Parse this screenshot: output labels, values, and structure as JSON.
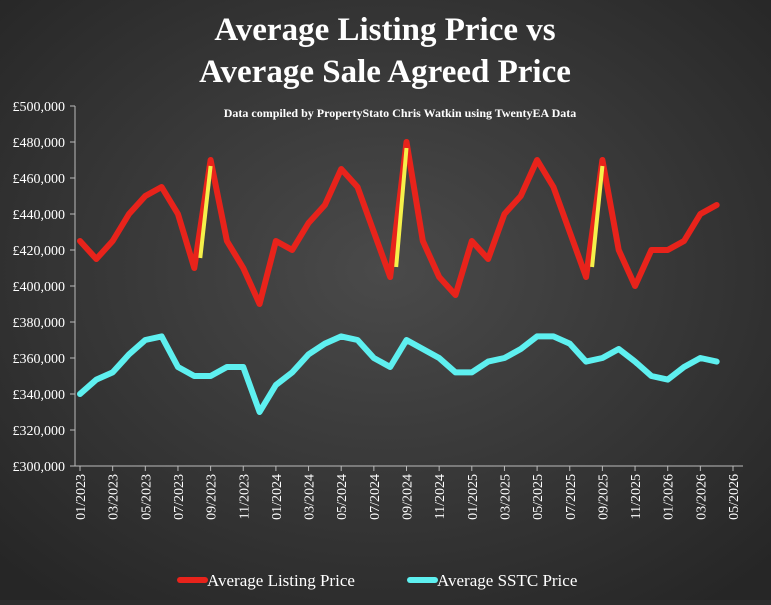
{
  "chart_data": {
    "type": "line",
    "title_lines": [
      "Average Listing Price vs",
      "Average Sale Agreed Price"
    ],
    "subtitle": "Data compiled by PropertyStato Chris Watkin using TwentyEA Data",
    "x": [
      "01/2023",
      "02/2023",
      "03/2023",
      "04/2023",
      "05/2023",
      "06/2023",
      "07/2023",
      "08/2023",
      "09/2023",
      "10/2023",
      "11/2023",
      "12/2023",
      "01/2024",
      "02/2024",
      "03/2024",
      "04/2024",
      "05/2024",
      "06/2024",
      "07/2024",
      "08/2024",
      "09/2024",
      "10/2024",
      "11/2024",
      "12/2024",
      "01/2025",
      "02/2025",
      "03/2025",
      "04/2025",
      "05/2025",
      "06/2025",
      "07/2025",
      "08/2025",
      "09/2025",
      "10/2025",
      "11/2025",
      "12/2025",
      "01/2026",
      "02/2026",
      "03/2026",
      "04/2026"
    ],
    "series": [
      {
        "name": "Average Listing Price",
        "color": "#e8231b",
        "values": [
          425000,
          415000,
          425000,
          440000,
          450000,
          455000,
          440000,
          410000,
          470000,
          425000,
          410000,
          390000,
          425000,
          420000,
          435000,
          445000,
          465000,
          455000,
          430000,
          405000,
          480000,
          425000,
          405000,
          395000,
          425000,
          415000,
          440000,
          450000,
          470000,
          455000,
          430000,
          405000,
          470000,
          420000,
          400000,
          420000,
          420000,
          425000,
          440000,
          445000
        ]
      },
      {
        "name": "Average SSTC Price",
        "color": "#5ef0f0",
        "values": [
          340000,
          348000,
          352000,
          362000,
          370000,
          372000,
          355000,
          350000,
          350000,
          355000,
          355000,
          330000,
          345000,
          352000,
          362000,
          368000,
          372000,
          370000,
          360000,
          355000,
          370000,
          365000,
          360000,
          352000,
          352000,
          358000,
          360000,
          365000,
          372000,
          372000,
          368000,
          358000,
          360000,
          365000,
          358000,
          350000,
          348000,
          355000,
          360000,
          358000
        ]
      }
    ],
    "highlight_months": [
      "09/2023",
      "09/2024",
      "09/2025"
    ],
    "highlight_color": "#f5f04a",
    "xlim": [
      "01/2023",
      "05/2026"
    ],
    "xticks": [
      "01/2023",
      "03/2023",
      "05/2023",
      "07/2023",
      "09/2023",
      "11/2023",
      "01/2024",
      "03/2024",
      "05/2024",
      "07/2024",
      "09/2024",
      "11/2024",
      "01/2025",
      "03/2025",
      "05/2025",
      "07/2025",
      "09/2025",
      "11/2025",
      "01/2026",
      "03/2026",
      "05/2026"
    ],
    "ylim": [
      300000,
      500000
    ],
    "yticks": [
      {
        "value": 300000,
        "label": "£300,000"
      },
      {
        "value": 320000,
        "label": "£320,000"
      },
      {
        "value": 340000,
        "label": "£340,000"
      },
      {
        "value": 360000,
        "label": "£360,000"
      },
      {
        "value": 380000,
        "label": "£380,000"
      },
      {
        "value": 400000,
        "label": "£400,000"
      },
      {
        "value": 420000,
        "label": "£420,000"
      },
      {
        "value": 440000,
        "label": "£440,000"
      },
      {
        "value": 460000,
        "label": "£460,000"
      },
      {
        "value": 480000,
        "label": "£480,000"
      },
      {
        "value": 500000,
        "label": "£500,000"
      }
    ],
    "grid": false,
    "legend": "bottom"
  }
}
